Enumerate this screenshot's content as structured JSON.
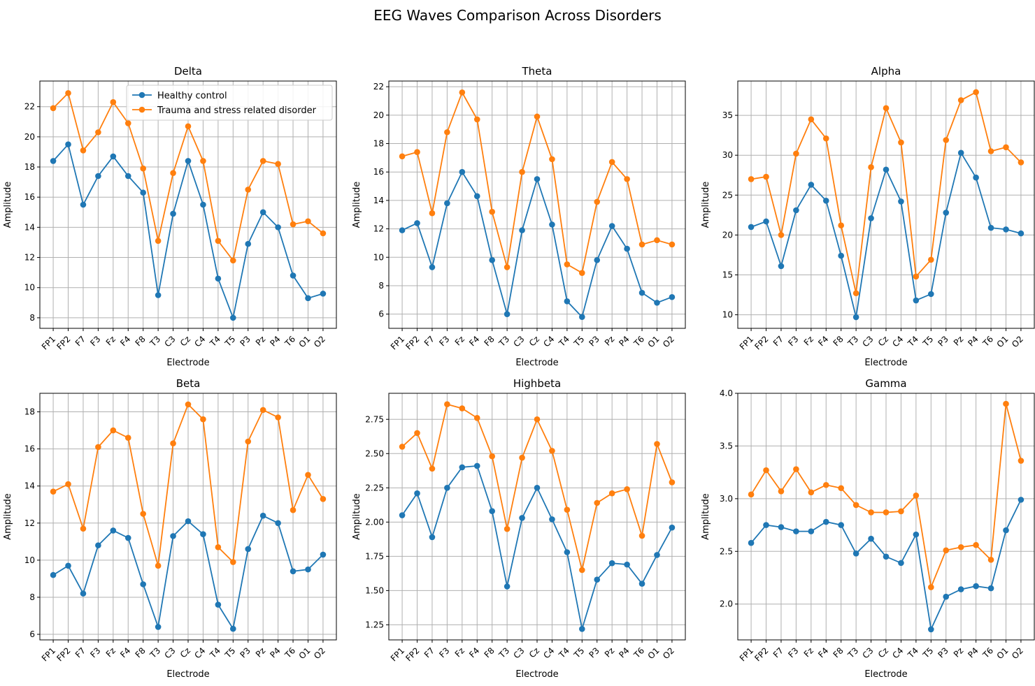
{
  "figure": {
    "title": "EEG Waves Comparison Across Disorders"
  },
  "colors": {
    "healthy": "#1f77b4",
    "trauma": "#ff7f0e",
    "grid": "#b0b0b0"
  },
  "legend": {
    "location": "upper-right of first panel",
    "entries": [
      "Healthy control",
      "Trauma and stress related disorder"
    ]
  },
  "chart_data": [
    {
      "type": "line",
      "title": "Delta",
      "xlabel": "Electrode",
      "ylabel": "Amplitude",
      "categories": [
        "FP1",
        "FP2",
        "F7",
        "F3",
        "Fz",
        "F4",
        "F8",
        "T3",
        "C3",
        "Cz",
        "C4",
        "T4",
        "T5",
        "P3",
        "Pz",
        "P4",
        "T6",
        "O1",
        "O2"
      ],
      "ylim": [
        7.3,
        23.7
      ],
      "yticks": [
        8,
        10,
        12,
        14,
        16,
        18,
        20,
        22
      ],
      "ytick_labels": [
        "8",
        "10",
        "12",
        "14",
        "16",
        "18",
        "20",
        "22"
      ],
      "grid": true,
      "series": [
        {
          "name": "Healthy control",
          "values": [
            18.4,
            19.5,
            15.5,
            17.4,
            18.7,
            17.4,
            16.3,
            9.5,
            14.9,
            18.4,
            15.5,
            10.6,
            8.0,
            12.9,
            15.0,
            14.0,
            10.8,
            9.3,
            9.6
          ]
        },
        {
          "name": "Trauma and stress related disorder",
          "values": [
            21.9,
            22.9,
            19.1,
            20.3,
            22.3,
            20.9,
            17.9,
            13.1,
            17.6,
            20.7,
            18.4,
            13.1,
            11.8,
            16.5,
            18.4,
            18.2,
            14.2,
            14.4,
            13.6
          ]
        }
      ]
    },
    {
      "type": "line",
      "title": "Theta",
      "xlabel": "Electrode",
      "ylabel": "Amplitude",
      "categories": [
        "FP1",
        "FP2",
        "F7",
        "F3",
        "Fz",
        "F4",
        "F8",
        "T3",
        "C3",
        "Cz",
        "C4",
        "T4",
        "T5",
        "P3",
        "Pz",
        "P4",
        "T6",
        "O1",
        "O2"
      ],
      "ylim": [
        5.0,
        22.4
      ],
      "yticks": [
        6,
        8,
        10,
        12,
        14,
        16,
        18,
        20,
        22
      ],
      "ytick_labels": [
        "6",
        "8",
        "10",
        "12",
        "14",
        "16",
        "18",
        "20",
        "22"
      ],
      "grid": true,
      "series": [
        {
          "name": "Healthy control",
          "values": [
            11.9,
            12.4,
            9.3,
            13.8,
            16.0,
            14.3,
            9.8,
            6.0,
            11.9,
            15.5,
            12.3,
            6.9,
            5.8,
            9.8,
            12.2,
            10.6,
            7.5,
            6.8,
            7.2
          ]
        },
        {
          "name": "Trauma and stress related disorder",
          "values": [
            17.1,
            17.4,
            13.1,
            18.8,
            21.6,
            19.7,
            13.2,
            9.3,
            16.0,
            19.9,
            16.9,
            9.5,
            8.9,
            13.9,
            16.7,
            15.5,
            10.9,
            11.2,
            10.9
          ]
        }
      ]
    },
    {
      "type": "line",
      "title": "Alpha",
      "xlabel": "Electrode",
      "ylabel": "Amplitude",
      "categories": [
        "FP1",
        "FP2",
        "F7",
        "F3",
        "Fz",
        "F4",
        "F8",
        "T3",
        "C3",
        "Cz",
        "C4",
        "T4",
        "T5",
        "P3",
        "Pz",
        "P4",
        "T6",
        "O1",
        "O2"
      ],
      "ylim": [
        8.3,
        39.3
      ],
      "yticks": [
        10,
        15,
        20,
        25,
        30,
        35
      ],
      "ytick_labels": [
        "10",
        "15",
        "20",
        "25",
        "30",
        "35"
      ],
      "grid": true,
      "series": [
        {
          "name": "Healthy control",
          "values": [
            21.0,
            21.7,
            16.1,
            23.1,
            26.3,
            24.3,
            17.4,
            9.7,
            22.1,
            28.2,
            24.2,
            11.8,
            12.6,
            22.8,
            30.3,
            27.2,
            20.9,
            20.7,
            20.2
          ]
        },
        {
          "name": "Trauma and stress related disorder",
          "values": [
            27.0,
            27.3,
            20.0,
            30.2,
            34.5,
            32.1,
            21.2,
            12.7,
            28.5,
            35.9,
            31.6,
            14.8,
            16.9,
            31.9,
            36.9,
            37.9,
            30.5,
            31.0,
            29.1
          ]
        }
      ]
    },
    {
      "type": "line",
      "title": "Beta",
      "xlabel": "Electrode",
      "ylabel": "Amplitude",
      "categories": [
        "FP1",
        "FP2",
        "F7",
        "F3",
        "Fz",
        "F4",
        "F8",
        "T3",
        "C3",
        "Cz",
        "C4",
        "T4",
        "T5",
        "P3",
        "Pz",
        "P4",
        "T6",
        "O1",
        "O2"
      ],
      "ylim": [
        5.7,
        19.0
      ],
      "yticks": [
        6,
        8,
        10,
        12,
        14,
        16,
        18
      ],
      "ytick_labels": [
        "6",
        "8",
        "10",
        "12",
        "14",
        "16",
        "18"
      ],
      "grid": true,
      "series": [
        {
          "name": "Healthy control",
          "values": [
            9.2,
            9.7,
            8.2,
            10.8,
            11.6,
            11.2,
            8.7,
            6.4,
            11.3,
            12.1,
            11.4,
            7.6,
            6.3,
            10.6,
            12.4,
            12.0,
            9.4,
            9.5,
            10.3
          ]
        },
        {
          "name": "Trauma and stress related disorder",
          "values": [
            13.7,
            14.1,
            11.7,
            16.1,
            17.0,
            16.6,
            12.5,
            9.7,
            16.3,
            18.4,
            17.6,
            10.7,
            9.9,
            16.4,
            18.1,
            17.7,
            12.7,
            14.6,
            13.3
          ]
        }
      ]
    },
    {
      "type": "line",
      "title": "Highbeta",
      "xlabel": "Electrode",
      "ylabel": "Amplitude",
      "categories": [
        "FP1",
        "FP2",
        "F7",
        "F3",
        "Fz",
        "F4",
        "F8",
        "T3",
        "C3",
        "Cz",
        "C4",
        "T4",
        "T5",
        "P3",
        "Pz",
        "P4",
        "T6",
        "O1",
        "O2"
      ],
      "ylim": [
        1.14,
        2.94
      ],
      "yticks": [
        1.25,
        1.5,
        1.75,
        2.0,
        2.25,
        2.5,
        2.75
      ],
      "ytick_labels": [
        "1.25",
        "1.50",
        "1.75",
        "2.00",
        "2.25",
        "2.50",
        "2.75"
      ],
      "grid": true,
      "series": [
        {
          "name": "Healthy control",
          "values": [
            2.05,
            2.21,
            1.89,
            2.25,
            2.4,
            2.41,
            2.08,
            1.53,
            2.03,
            2.25,
            2.02,
            1.78,
            1.22,
            1.58,
            1.7,
            1.69,
            1.55,
            1.76,
            1.96
          ]
        },
        {
          "name": "Trauma and stress related disorder",
          "values": [
            2.55,
            2.65,
            2.39,
            2.86,
            2.83,
            2.76,
            2.48,
            1.95,
            2.47,
            2.75,
            2.52,
            2.09,
            1.65,
            2.14,
            2.21,
            2.24,
            1.9,
            2.57,
            2.29
          ]
        }
      ]
    },
    {
      "type": "line",
      "title": "Gamma",
      "xlabel": "Electrode",
      "ylabel": "Amplitude",
      "categories": [
        "FP1",
        "FP2",
        "F7",
        "F3",
        "Fz",
        "F4",
        "F8",
        "T3",
        "C3",
        "Cz",
        "C4",
        "T4",
        "T5",
        "P3",
        "Pz",
        "P4",
        "T6",
        "O1",
        "O2"
      ],
      "ylim": [
        1.66,
        4.0
      ],
      "yticks": [
        2.0,
        2.5,
        3.0,
        3.5,
        4.0
      ],
      "ytick_labels": [
        "2.0",
        "2.5",
        "3.0",
        "3.5",
        "4.0"
      ],
      "grid": true,
      "series": [
        {
          "name": "Healthy control",
          "values": [
            2.58,
            2.75,
            2.73,
            2.69,
            2.69,
            2.78,
            2.75,
            2.48,
            2.62,
            2.45,
            2.39,
            2.66,
            1.76,
            2.07,
            2.14,
            2.17,
            2.15,
            2.7,
            2.99
          ]
        },
        {
          "name": "Trauma and stress related disorder",
          "values": [
            3.04,
            3.27,
            3.07,
            3.28,
            3.06,
            3.13,
            3.1,
            2.94,
            2.87,
            2.87,
            2.88,
            3.03,
            2.16,
            2.51,
            2.54,
            2.56,
            2.42,
            3.9,
            3.36
          ]
        }
      ]
    }
  ]
}
